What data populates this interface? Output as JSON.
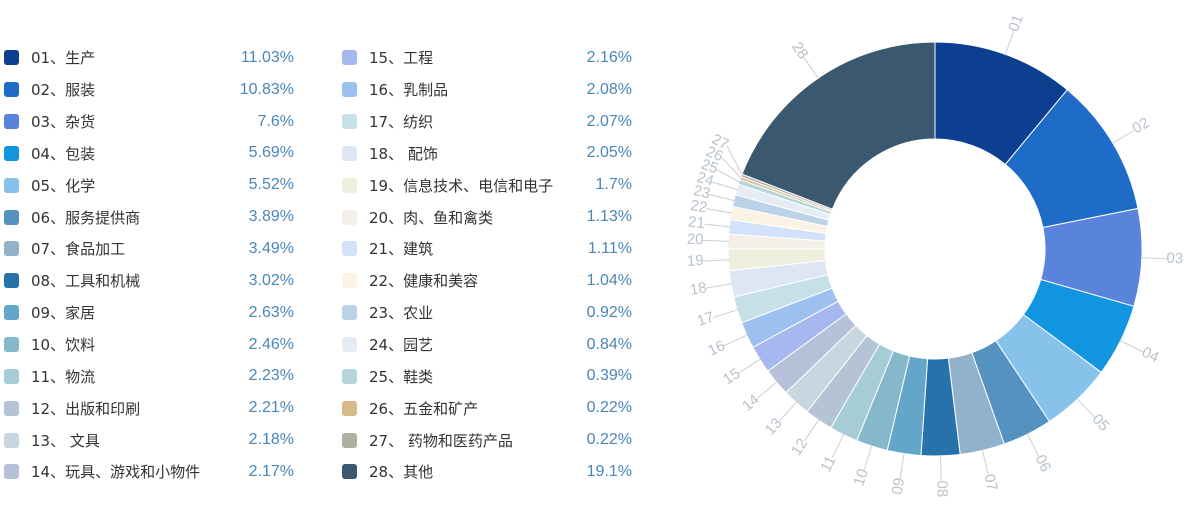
{
  "chart_data": {
    "type": "pie",
    "variant": "donut",
    "legend_position": "left",
    "slices": [
      {
        "id": "01",
        "label": "01、生产",
        "value": 11.03,
        "value_label": "11.03%",
        "color": "#0d3f91"
      },
      {
        "id": "02",
        "label": "02、服装",
        "value": 10.83,
        "value_label": "10.83%",
        "color": "#1f6bc8"
      },
      {
        "id": "03",
        "label": "03、杂货",
        "value": 7.6,
        "value_label": "7.6%",
        "color": "#5a83dc"
      },
      {
        "id": "04",
        "label": "04、包装",
        "value": 5.69,
        "value_label": "5.69%",
        "color": "#1195e0"
      },
      {
        "id": "05",
        "label": "05、化学",
        "value": 5.52,
        "value_label": "5.52%",
        "color": "#87c2ea"
      },
      {
        "id": "06",
        "label": "06、服务提供商",
        "value": 3.89,
        "value_label": "3.89%",
        "color": "#5592c0"
      },
      {
        "id": "07",
        "label": "07、食品加工",
        "value": 3.49,
        "value_label": "3.49%",
        "color": "#92b1cb"
      },
      {
        "id": "08",
        "label": "08、工具和机械",
        "value": 3.02,
        "value_label": "3.02%",
        "color": "#2872ab"
      },
      {
        "id": "09",
        "label": "09、家居",
        "value": 2.63,
        "value_label": "2.63%",
        "color": "#64a6c9"
      },
      {
        "id": "10",
        "label": "10、饮料",
        "value": 2.46,
        "value_label": "2.46%",
        "color": "#86b8cc"
      },
      {
        "id": "11",
        "label": "11、物流",
        "value": 2.23,
        "value_label": "2.23%",
        "color": "#a6ccd6"
      },
      {
        "id": "12",
        "label": "12、出版和印刷",
        "value": 2.21,
        "value_label": "2.21%",
        "color": "#b5c4d5"
      },
      {
        "id": "13",
        "label": "13、 文具",
        "value": 2.18,
        "value_label": "2.18%",
        "color": "#c8d6e0"
      },
      {
        "id": "14",
        "label": "14、玩具、游戏和小物件",
        "value": 2.17,
        "value_label": "2.17%",
        "color": "#b6c1d9"
      },
      {
        "id": "15",
        "label": "15、工程",
        "value": 2.16,
        "value_label": "2.16%",
        "color": "#a7b7ef"
      },
      {
        "id": "16",
        "label": "16、乳制品",
        "value": 2.08,
        "value_label": "2.08%",
        "color": "#9cc0f0"
      },
      {
        "id": "17",
        "label": "17、纺织",
        "value": 2.07,
        "value_label": "2.07%",
        "color": "#c6e0e8"
      },
      {
        "id": "18",
        "label": "18、 配饰",
        "value": 2.05,
        "value_label": "2.05%",
        "color": "#dde6f5"
      },
      {
        "id": "19",
        "label": "19、信息技术、电信和电子",
        "value": 1.7,
        "value_label": "1.7%",
        "color": "#efefde"
      },
      {
        "id": "20",
        "label": "20、肉、鱼和禽类",
        "value": 1.13,
        "value_label": "1.13%",
        "color": "#f5efea"
      },
      {
        "id": "21",
        "label": "21、建筑",
        "value": 1.11,
        "value_label": "1.11%",
        "color": "#d2e2fb"
      },
      {
        "id": "22",
        "label": "22、健康和美容",
        "value": 1.04,
        "value_label": "1.04%",
        "color": "#fbf3e4"
      },
      {
        "id": "23",
        "label": "23、农业",
        "value": 0.92,
        "value_label": "0.92%",
        "color": "#bcd2e8"
      },
      {
        "id": "24",
        "label": "24、园艺",
        "value": 0.84,
        "value_label": "0.84%",
        "color": "#e6ecf4"
      },
      {
        "id": "25",
        "label": "25、鞋类",
        "value": 0.39,
        "value_label": "0.39%",
        "color": "#b5d5da"
      },
      {
        "id": "26",
        "label": "26、五金和矿产",
        "value": 0.22,
        "value_label": "0.22%",
        "color": "#d8b98a"
      },
      {
        "id": "27",
        "label": "27、 药物和医药产品",
        "value": 0.22,
        "value_label": "0.22%",
        "color": "#aeb1a2"
      },
      {
        "id": "28",
        "label": "28、其他",
        "value": 19.1,
        "value_label": "19.1%",
        "color": "#3a586f"
      }
    ]
  }
}
